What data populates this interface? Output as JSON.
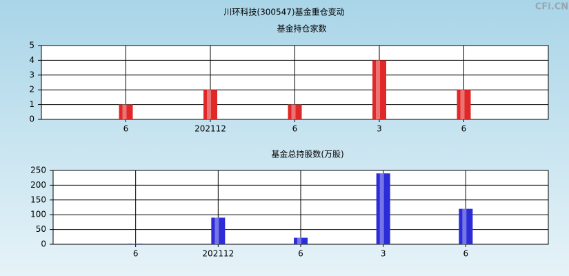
{
  "title": "川环科技(300547)基金重仓变动",
  "watermark": "CFi.CN",
  "chart_data": [
    {
      "type": "bar",
      "title": "基金持仓家数",
      "categories": [
        "6",
        "202112",
        "6",
        "3",
        "6"
      ],
      "values": [
        1,
        2,
        1,
        4,
        2
      ],
      "color": "#e02828",
      "ylim": [
        0,
        5
      ],
      "yticks": [
        0,
        1,
        2,
        3,
        4,
        5
      ],
      "grid": true
    },
    {
      "type": "bar",
      "title": "基金总持股数(万股)",
      "categories": [
        "6",
        "202112",
        "6",
        "3",
        "6"
      ],
      "values": [
        2,
        90,
        22,
        240,
        120
      ],
      "color": "#2c2cd8",
      "ylim": [
        0,
        250
      ],
      "yticks": [
        0,
        50,
        100,
        150,
        200,
        250
      ],
      "grid": true
    }
  ]
}
